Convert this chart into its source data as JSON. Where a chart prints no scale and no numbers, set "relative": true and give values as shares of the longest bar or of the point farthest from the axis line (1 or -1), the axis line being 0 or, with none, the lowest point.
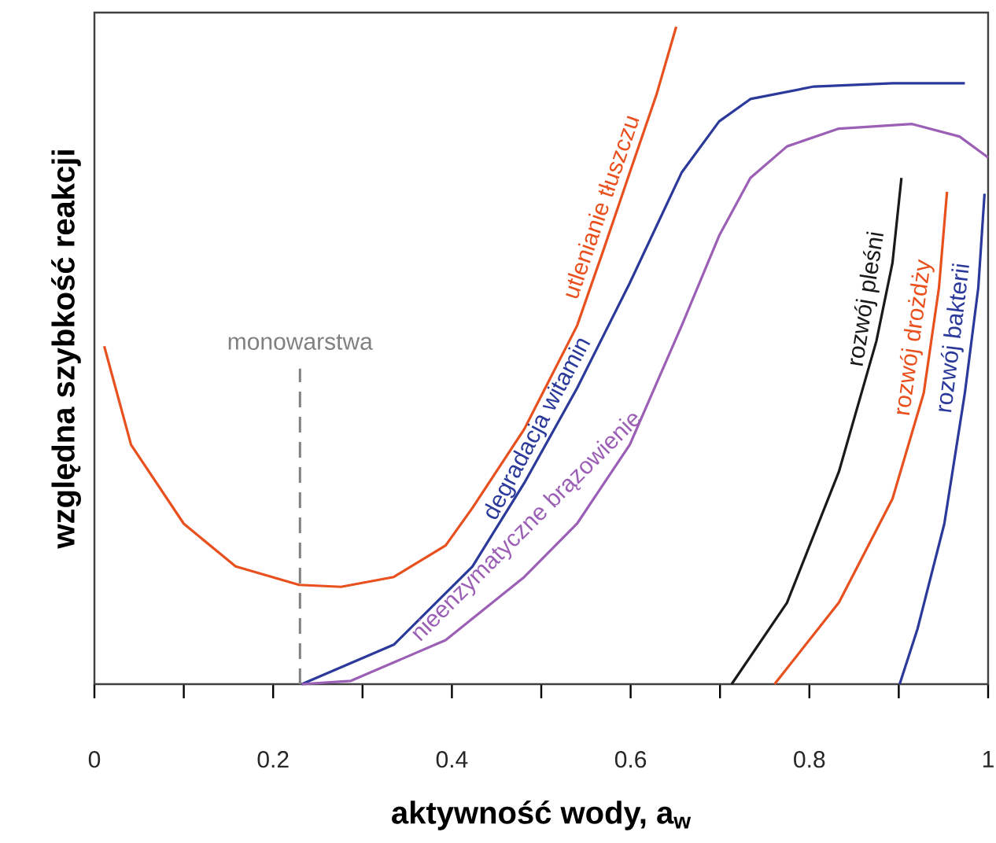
{
  "chart_data": {
    "type": "line",
    "relative": true,
    "xlabel": "aktywność wody, a$_{w}$",
    "ylabel": "względna szybkość reakcji",
    "xlim": [
      0,
      1
    ],
    "xticks": [
      0,
      {
        "value": 0.1,
        "label": null
      },
      0.2,
      {
        "value": 0.3,
        "label": null
      },
      0.4,
      {
        "value": 0.5,
        "label": null
      },
      0.6,
      {
        "value": 0.7,
        "label": null
      },
      0.8,
      {
        "value": 0.9,
        "label": null
      },
      1
    ],
    "line_style": "solid",
    "marker": "none",
    "ref_lines": [
      {
        "axis": "x",
        "value": 0.23,
        "label": "monowarstwa",
        "color": "#808080",
        "line_style": "dashed"
      }
    ],
    "series": [
      {
        "name": "utlenianie tłuszczu",
        "color": "#e8501e",
        "x": [
          0.011,
          0.041,
          0.1,
          0.158,
          0.229,
          0.276,
          0.335,
          0.393,
          0.423,
          0.481,
          0.54,
          0.569,
          0.599,
          0.629,
          0.651
        ],
        "values": [
          0.514,
          0.364,
          0.244,
          0.179,
          0.151,
          0.148,
          0.163,
          0.211,
          0.268,
          0.388,
          0.545,
          0.658,
          0.778,
          0.897,
          1.0
        ]
      },
      {
        "name": "degradacja witamin",
        "color": "#2b3a9a",
        "x": [
          0.232,
          0.335,
          0.423,
          0.481,
          0.54,
          0.599,
          0.657,
          0.699,
          0.734,
          0.805,
          0.893,
          0.974
        ],
        "values": [
          0,
          0.06,
          0.179,
          0.306,
          0.45,
          0.61,
          0.778,
          0.856,
          0.89,
          0.909,
          0.914,
          0.914
        ]
      },
      {
        "name": "nieenzymatyczne brązowienie",
        "color": "#9b5fb5",
        "x": [
          0.232,
          0.287,
          0.393,
          0.481,
          0.54,
          0.599,
          0.657,
          0.699,
          0.734,
          0.775,
          0.833,
          0.915,
          0.968,
          1.0
        ],
        "values": [
          0,
          0.005,
          0.067,
          0.163,
          0.244,
          0.364,
          0.545,
          0.682,
          0.77,
          0.818,
          0.845,
          0.852,
          0.833,
          0.801
        ]
      },
      {
        "name": "rozwój pleśni",
        "color": "#1a1a1a",
        "x": [
          0.713,
          0.775,
          0.833,
          0.875,
          0.893,
          0.903
        ],
        "values": [
          0,
          0.124,
          0.323,
          0.522,
          0.641,
          0.77
        ]
      },
      {
        "name": "rozwój drożdży",
        "color": "#e8501e",
        "x": [
          0.761,
          0.833,
          0.893,
          0.928,
          0.945,
          0.954
        ],
        "values": [
          0,
          0.124,
          0.282,
          0.443,
          0.603,
          0.749
        ]
      },
      {
        "name": "rozwój bakterii",
        "color": "#2b3a9a",
        "x": [
          0.901,
          0.921,
          0.951,
          0.974,
          0.989,
          0.996
        ],
        "values": [
          0,
          0.084,
          0.244,
          0.443,
          0.603,
          0.746
        ]
      }
    ]
  }
}
